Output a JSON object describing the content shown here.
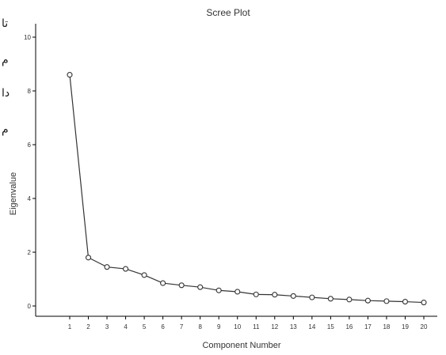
{
  "side_text": [
    "تا",
    "م",
    "دا",
    "م"
  ],
  "chart_data": {
    "type": "line",
    "title": "Scree Plot",
    "xlabel": "Component Number",
    "ylabel": "Eigenvalue",
    "x": [
      1,
      2,
      3,
      4,
      5,
      6,
      7,
      8,
      9,
      10,
      11,
      12,
      13,
      14,
      15,
      16,
      17,
      18,
      19,
      20
    ],
    "x_tick_labels": [
      "1",
      "2",
      "3",
      "4",
      "5",
      "6",
      "7",
      "8",
      "9",
      "10",
      "11",
      "12",
      "13",
      "14",
      "15",
      "16",
      "17",
      "18",
      "19",
      "20"
    ],
    "values": [
      8.6,
      1.8,
      1.45,
      1.38,
      1.15,
      0.85,
      0.77,
      0.7,
      0.58,
      0.53,
      0.43,
      0.42,
      0.37,
      0.32,
      0.27,
      0.24,
      0.2,
      0.18,
      0.16,
      0.13
    ],
    "y_ticks": [
      0,
      2,
      4,
      6,
      8,
      10
    ],
    "ylim": [
      0,
      10.5
    ],
    "grid": false,
    "marker": "circle",
    "line_color": "#333333"
  }
}
